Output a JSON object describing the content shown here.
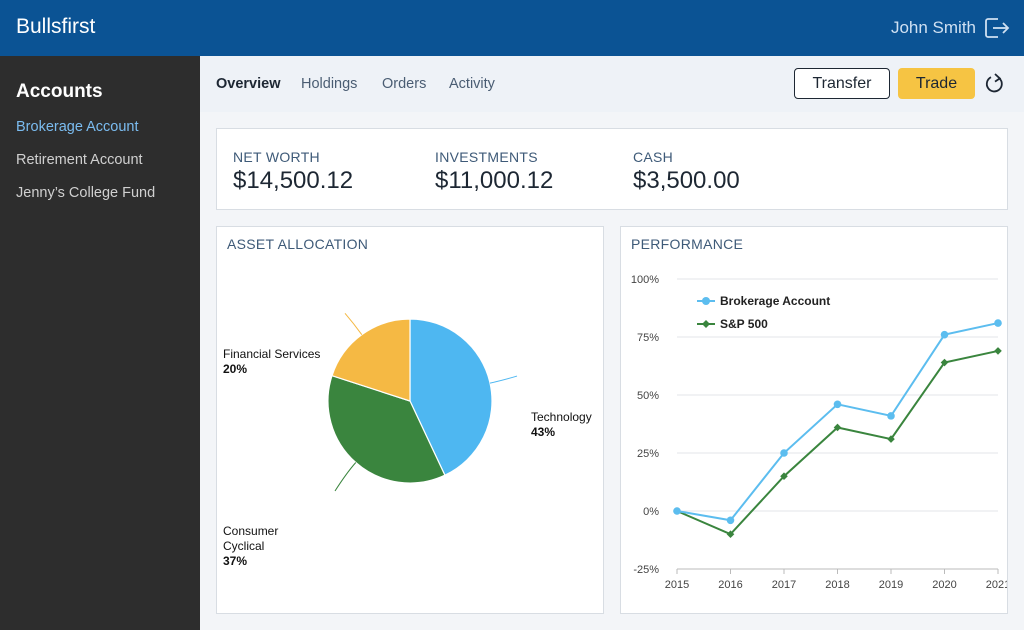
{
  "header": {
    "brand": "Bullsfirst",
    "user_name": "John Smith",
    "logout_icon": "logout-icon"
  },
  "sidebar": {
    "title": "Accounts",
    "items": [
      {
        "label": "Brokerage Account",
        "active": true
      },
      {
        "label": "Retirement Account",
        "active": false
      },
      {
        "label": "Jenny’s College Fund",
        "active": false
      }
    ]
  },
  "tabs": [
    {
      "label": "Overview",
      "active": true
    },
    {
      "label": "Holdings",
      "active": false
    },
    {
      "label": "Orders",
      "active": false
    },
    {
      "label": "Activity",
      "active": false
    }
  ],
  "toolbar": {
    "transfer_label": "Transfer",
    "trade_label": "Trade",
    "refresh_icon": "refresh-icon"
  },
  "summary": {
    "net_worth": {
      "label": "NET WORTH",
      "value": "$14,500.12"
    },
    "investments": {
      "label": "INVESTMENTS",
      "value": "$11,000.12"
    },
    "cash": {
      "label": "CASH",
      "value": "$3,500.00"
    }
  },
  "colors": {
    "header": "#0b5394",
    "accent_yellow": "#f6c443",
    "technology": "#4eb7f1",
    "consumer": "#3a853e",
    "financial": "#f5b944",
    "brokerage": "#5cbdef",
    "sp500": "#3a853e"
  },
  "chart_data": [
    {
      "type": "pie",
      "title": "ASSET ALLOCATION",
      "slices": [
        {
          "label": "Technology",
          "value": 43,
          "pct_label": "43%",
          "color": "#4eb7f1"
        },
        {
          "label": "Consumer Cyclical",
          "value": 37,
          "pct_label": "37%",
          "color": "#3a853e"
        },
        {
          "label": "Financial Services",
          "value": 20,
          "pct_label": "20%",
          "color": "#f5b944"
        }
      ]
    },
    {
      "type": "line",
      "title": "PERFORMANCE",
      "x": [
        "2015",
        "2016",
        "2017",
        "2018",
        "2019",
        "2020",
        "2021"
      ],
      "yticks": [
        -25,
        0,
        25,
        50,
        75,
        100
      ],
      "ytick_labels": [
        "-25%",
        "0%",
        "25%",
        "50%",
        "75%",
        "100%"
      ],
      "ylim": [
        -25,
        100
      ],
      "legend_position": "top-left",
      "series": [
        {
          "name": "Brokerage Account",
          "values": [
            0,
            -4,
            25,
            46,
            41,
            76,
            81
          ],
          "color": "#5cbdef",
          "marker": "circle"
        },
        {
          "name": "S&P 500",
          "values": [
            0,
            -10,
            15,
            36,
            31,
            64,
            69
          ],
          "color": "#3a853e",
          "marker": "diamond"
        }
      ]
    }
  ]
}
